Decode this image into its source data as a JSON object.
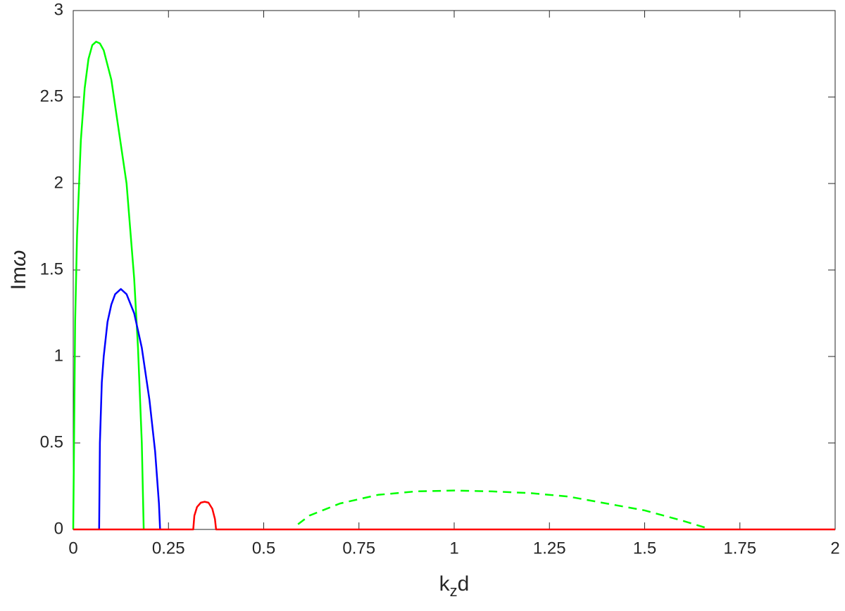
{
  "chart_data": {
    "type": "line",
    "xlabel": [
      "k",
      "z",
      "d"
    ],
    "ylabel": [
      "Im",
      "ω"
    ],
    "xlim": [
      0,
      2
    ],
    "xticks": [
      0,
      0.25,
      0.5,
      0.75,
      1,
      1.25,
      1.5,
      1.75,
      2
    ],
    "ylim": [
      0,
      3
    ],
    "yticks": [
      0,
      0.5,
      1,
      1.5,
      2,
      2.5,
      3
    ],
    "grid": false,
    "series": [
      {
        "color": "#00ff00",
        "linestyle": "solid",
        "x": [
          0,
          0.005,
          0.01,
          0.02,
          0.03,
          0.04,
          0.05,
          0.06,
          0.07,
          0.08,
          0.1,
          0.12,
          0.14,
          0.16,
          0.17,
          0.18,
          0.185
        ],
        "values": [
          0,
          1.2,
          1.7,
          2.25,
          2.55,
          2.72,
          2.8,
          2.82,
          2.81,
          2.77,
          2.6,
          2.3,
          2.0,
          1.45,
          1.05,
          0.5,
          0
        ]
      },
      {
        "color": "#0000ff",
        "linestyle": "solid",
        "x": [
          0.068,
          0.07,
          0.075,
          0.08,
          0.09,
          0.1,
          0.11,
          0.125,
          0.14,
          0.16,
          0.18,
          0.2,
          0.215,
          0.225,
          0.228
        ],
        "values": [
          0,
          0.5,
          0.85,
          1.0,
          1.2,
          1.3,
          1.36,
          1.39,
          1.36,
          1.25,
          1.05,
          0.75,
          0.45,
          0.15,
          0
        ]
      },
      {
        "color": "#00ff00",
        "linestyle": "dashed",
        "x": [
          0.59,
          0.62,
          0.7,
          0.8,
          0.9,
          1.0,
          1.1,
          1.2,
          1.3,
          1.4,
          1.5,
          1.6,
          1.66
        ],
        "values": [
          0.03,
          0.08,
          0.15,
          0.2,
          0.22,
          0.225,
          0.22,
          0.21,
          0.19,
          0.15,
          0.11,
          0.05,
          0.01
        ]
      },
      {
        "color": "#ff0000",
        "linestyle": "solid",
        "x": [
          0,
          0.315,
          0.318,
          0.325,
          0.335,
          0.345,
          0.355,
          0.365,
          0.372,
          0.375,
          2
        ],
        "values": [
          0,
          0,
          0.08,
          0.13,
          0.155,
          0.16,
          0.155,
          0.12,
          0.06,
          0,
          0
        ]
      }
    ]
  }
}
